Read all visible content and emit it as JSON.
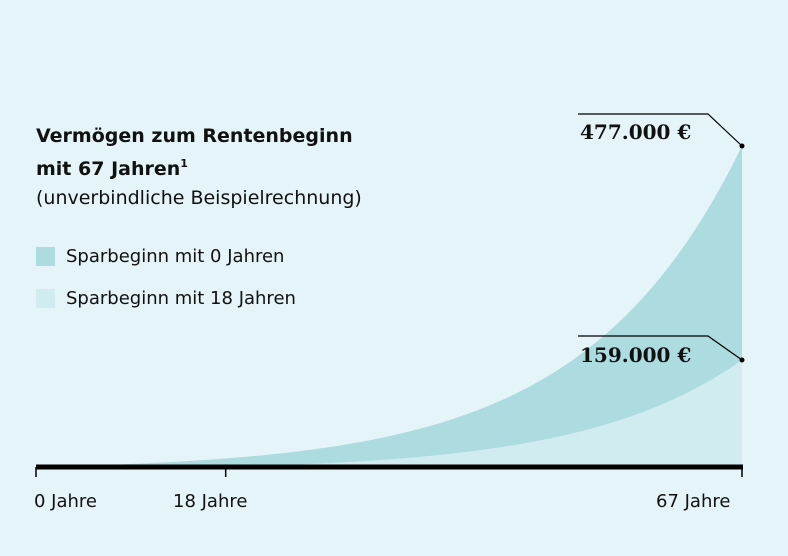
{
  "chart_data": {
    "type": "area",
    "title_line1": "Vermögen zum Rentenbeginn",
    "title_line2": "mit 67 Jahren",
    "title_sup": "1",
    "subtitle": "(unverbindliche Beispielrechnung)",
    "x_ticks": [
      {
        "value": 0,
        "label": "0 Jahre"
      },
      {
        "value": 18,
        "label": "18 Jahre"
      },
      {
        "value": 67,
        "label": "67 Jahre"
      }
    ],
    "xlim": [
      0,
      67
    ],
    "series": [
      {
        "name": "Sparbeginn mit 0 Jahren",
        "start_age": 0,
        "end_value": 477000,
        "end_label": "477.000 €",
        "color": "#acdbe0"
      },
      {
        "name": "Sparbeginn mit 18 Jahren",
        "start_age": 18,
        "end_value": 159000,
        "end_label": "159.000 €",
        "color": "#d1ecf0"
      }
    ],
    "background": "#e5f4f8",
    "axis_color": "#000000"
  }
}
